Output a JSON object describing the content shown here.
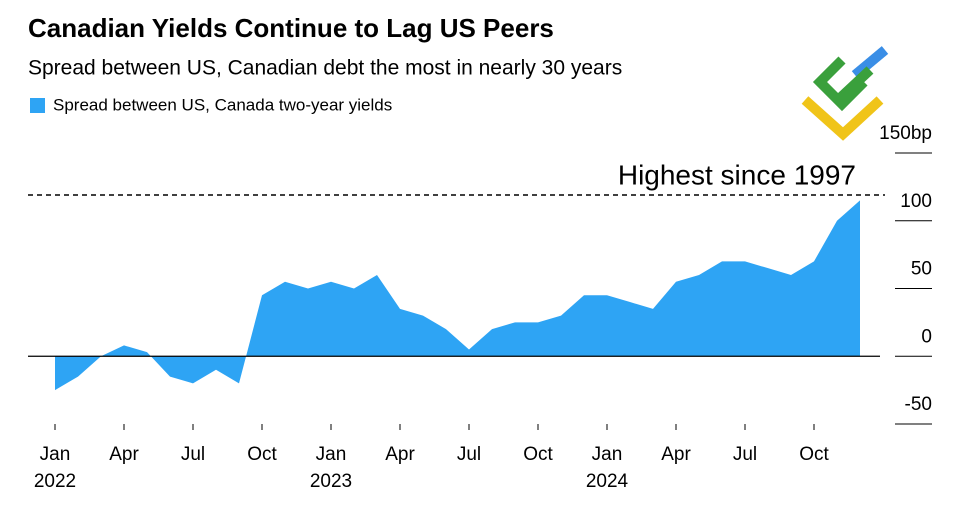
{
  "chart_data": {
    "type": "area",
    "title": "Canadian Yields Continue to Lag US Peers",
    "subtitle": "Spread between US, Canadian debt the most in nearly 30 years",
    "series": [
      {
        "name": "Spread between US, Canada two-year yields",
        "color": "#2ea4f4",
        "values": [
          -25,
          -15,
          0,
          8,
          3,
          -15,
          -20,
          -10,
          -20,
          45,
          55,
          50,
          55,
          50,
          60,
          35,
          30,
          20,
          5,
          20,
          25,
          25,
          30,
          45,
          45,
          40,
          35,
          55,
          60,
          70,
          70,
          65,
          60,
          70,
          100,
          115
        ]
      }
    ],
    "x": [
      "2022-01",
      "2022-02",
      "2022-03",
      "2022-04",
      "2022-05",
      "2022-06",
      "2022-07",
      "2022-08",
      "2022-09",
      "2022-10",
      "2022-11",
      "2022-12",
      "2023-01",
      "2023-02",
      "2023-03",
      "2023-04",
      "2023-05",
      "2023-06",
      "2023-07",
      "2023-08",
      "2023-09",
      "2023-10",
      "2023-11",
      "2023-12",
      "2024-01",
      "2024-02",
      "2024-03",
      "2024-04",
      "2024-05",
      "2024-06",
      "2024-07",
      "2024-08",
      "2024-09",
      "2024-10",
      "2024-11",
      "2024-12"
    ],
    "xticks": [
      {
        "value": "2022-01",
        "label": "Jan",
        "year": "2022"
      },
      {
        "value": "2022-04",
        "label": "Apr"
      },
      {
        "value": "2022-07",
        "label": "Jul"
      },
      {
        "value": "2022-10",
        "label": "Oct"
      },
      {
        "value": "2023-01",
        "label": "Jan",
        "year": "2023"
      },
      {
        "value": "2023-04",
        "label": "Apr"
      },
      {
        "value": "2023-07",
        "label": "Jul"
      },
      {
        "value": "2023-10",
        "label": "Oct"
      },
      {
        "value": "2024-01",
        "label": "Jan",
        "year": "2024"
      },
      {
        "value": "2024-04",
        "label": "Apr"
      },
      {
        "value": "2024-07",
        "label": "Jul"
      },
      {
        "value": "2024-10",
        "label": "Oct"
      }
    ],
    "ylim": [
      -55,
      150
    ],
    "yticks": [
      -50,
      0,
      50,
      100,
      {
        "value": 150,
        "label": "150bp"
      }
    ],
    "annotation": {
      "text": "Highest since 1997",
      "value": 119
    }
  }
}
